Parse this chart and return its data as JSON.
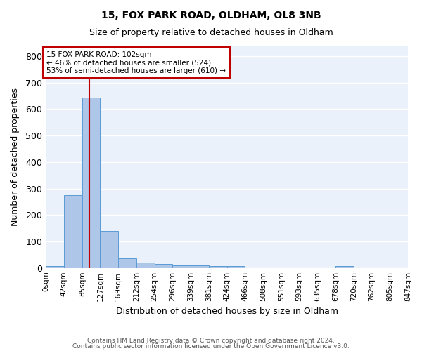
{
  "title_line1": "15, FOX PARK ROAD, OLDHAM, OL8 3NB",
  "title_line2": "Size of property relative to detached houses in Oldham",
  "xlabel": "Distribution of detached houses by size in Oldham",
  "ylabel": "Number of detached properties",
  "footnote1": "Contains HM Land Registry data © Crown copyright and database right 2024.",
  "footnote2": "Contains public sector information licensed under the Open Government Licence v3.0.",
  "property_size": 102,
  "property_label": "15 FOX PARK ROAD: 102sqm",
  "annotation_line1": "← 46% of detached houses are smaller (524)",
  "annotation_line2": "53% of semi-detached houses are larger (610) →",
  "bin_edges": [
    0,
    42,
    85,
    127,
    169,
    212,
    254,
    296,
    339,
    381,
    424,
    466,
    508,
    551,
    593,
    635,
    678,
    720,
    762,
    805,
    847
  ],
  "bar_heights": [
    8,
    275,
    645,
    140,
    37,
    20,
    14,
    11,
    10,
    7,
    7,
    0,
    0,
    0,
    0,
    0,
    7,
    0,
    0,
    0
  ],
  "bar_color": "#aec6e8",
  "bar_edge_color": "#5b9bd5",
  "vline_x": 102,
  "vline_color": "#c00000",
  "bg_color": "#eaf1fb",
  "grid_color": "#ffffff",
  "annotation_box_color": "#c00000",
  "ylim": [
    0,
    840
  ],
  "yticks": [
    0,
    100,
    200,
    300,
    400,
    500,
    600,
    700,
    800
  ]
}
